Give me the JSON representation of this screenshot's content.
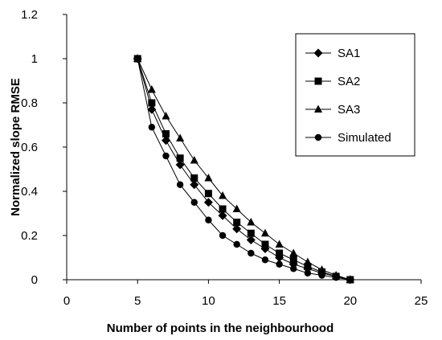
{
  "chart_data": {
    "type": "line",
    "title": "",
    "xlabel": "Number of points in the neighbourhood",
    "ylabel": "Normalized slope RMSE",
    "xlim": [
      0,
      25
    ],
    "ylim": [
      0,
      1.2
    ],
    "x_ticks": [
      "0",
      "5",
      "10",
      "15",
      "20",
      "25"
    ],
    "y_ticks": [
      "0",
      "0.2",
      "0.4",
      "0.6",
      "0.8",
      "1",
      "1.2"
    ],
    "grid": false,
    "legend_position": "top-right",
    "x": [
      5,
      6,
      7,
      8,
      9,
      10,
      11,
      12,
      13,
      14,
      15,
      16,
      17,
      18,
      19,
      20
    ],
    "series": [
      {
        "name": "SA1",
        "marker": "diamond",
        "values": [
          1.0,
          0.77,
          0.63,
          0.52,
          0.43,
          0.35,
          0.29,
          0.23,
          0.18,
          0.14,
          0.1,
          0.07,
          0.05,
          0.03,
          0.015,
          0.0
        ]
      },
      {
        "name": "SA2",
        "marker": "square",
        "values": [
          1.0,
          0.8,
          0.66,
          0.55,
          0.46,
          0.39,
          0.32,
          0.26,
          0.21,
          0.16,
          0.12,
          0.09,
          0.06,
          0.035,
          0.015,
          0.0
        ]
      },
      {
        "name": "SA3",
        "marker": "triangle",
        "values": [
          1.0,
          0.86,
          0.74,
          0.64,
          0.54,
          0.46,
          0.38,
          0.32,
          0.26,
          0.21,
          0.16,
          0.12,
          0.08,
          0.045,
          0.02,
          0.0
        ]
      },
      {
        "name": "Simulated",
        "marker": "circle",
        "values": [
          1.0,
          0.69,
          0.56,
          0.43,
          0.35,
          0.27,
          0.2,
          0.16,
          0.12,
          0.09,
          0.07,
          0.05,
          0.03,
          0.02,
          0.01,
          0.0
        ]
      }
    ]
  }
}
